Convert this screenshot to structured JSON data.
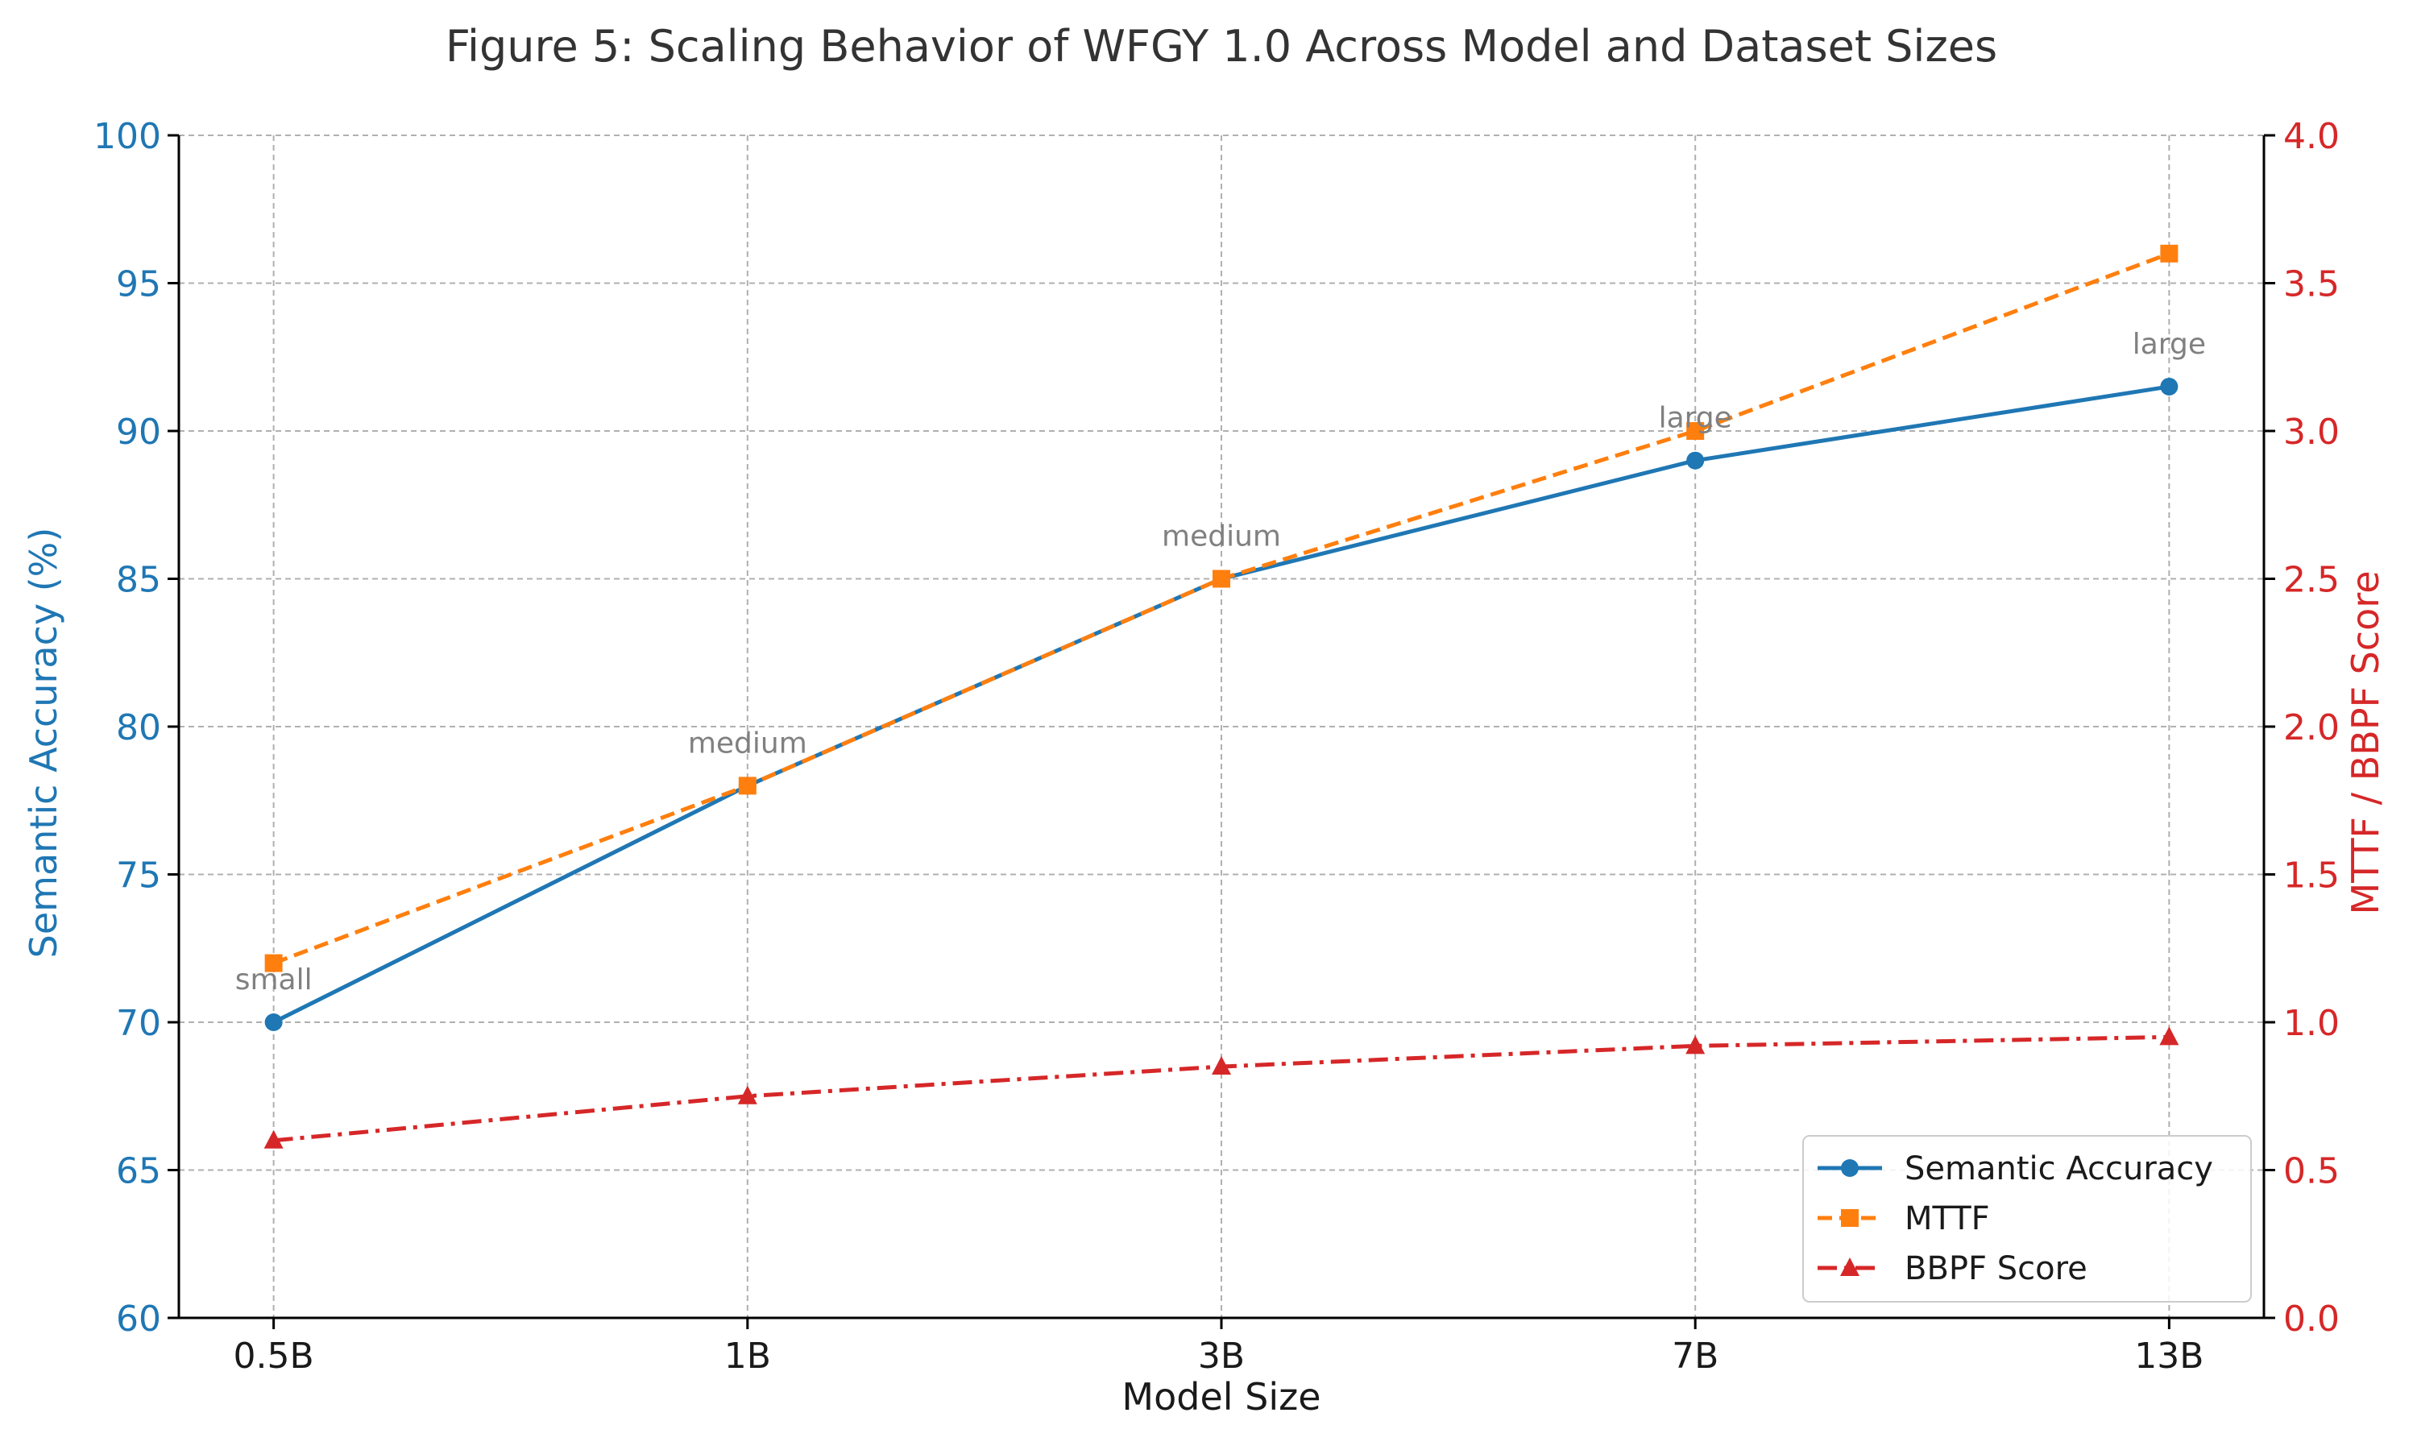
{
  "chart_data": {
    "type": "line",
    "title": "Figure 5: Scaling Behavior of WFGY 1.0 Across Model and Dataset Sizes",
    "xlabel": "Model Size",
    "ylabel": "Semantic Accuracy (%)",
    "ylabel_right": "MTTF / BBPF Score",
    "categories": [
      "0.5B",
      "1B",
      "3B",
      "7B",
      "13B"
    ],
    "ylim": [
      60,
      100
    ],
    "ylim_right": [
      0.0,
      4.0
    ],
    "yticks": [
      "60",
      "65",
      "70",
      "75",
      "80",
      "85",
      "90",
      "95",
      "100"
    ],
    "yticks_right": [
      "0.0",
      "0.5",
      "1.0",
      "1.5",
      "2.0",
      "2.5",
      "3.0",
      "3.5",
      "4.0"
    ],
    "grid": true,
    "legend_position": "bottom-right",
    "series": [
      {
        "name": "Semantic Accuracy",
        "axis": "left",
        "values": [
          70,
          78,
          85,
          89,
          91.5
        ],
        "color": "#1f77b4",
        "marker": "circle",
        "linestyle": "solid"
      },
      {
        "name": "MTTF",
        "axis": "right",
        "values": [
          1.2,
          1.8,
          2.5,
          3.0,
          3.6
        ],
        "color": "#ff7f0e",
        "marker": "square",
        "linestyle": "dashed"
      },
      {
        "name": "BBPF Score",
        "axis": "right",
        "values": [
          0.6,
          0.75,
          0.85,
          0.92,
          0.95
        ],
        "color": "#d62728",
        "marker": "triangle",
        "linestyle": "dashdot"
      }
    ],
    "annotations": [
      {
        "text": "small",
        "category": "0.5B",
        "value": 71.5
      },
      {
        "text": "medium",
        "category": "1B",
        "value": 79.5
      },
      {
        "text": "medium",
        "category": "3B",
        "value": 86.5
      },
      {
        "text": "large",
        "category": "7B",
        "value": 90.5
      },
      {
        "text": "large",
        "category": "13B",
        "value": 93.0
      }
    ],
    "colors": {
      "left_axis": "#1f77b4",
      "right_axis": "#d62728",
      "annotation": "#808080",
      "title": "#333333"
    }
  }
}
